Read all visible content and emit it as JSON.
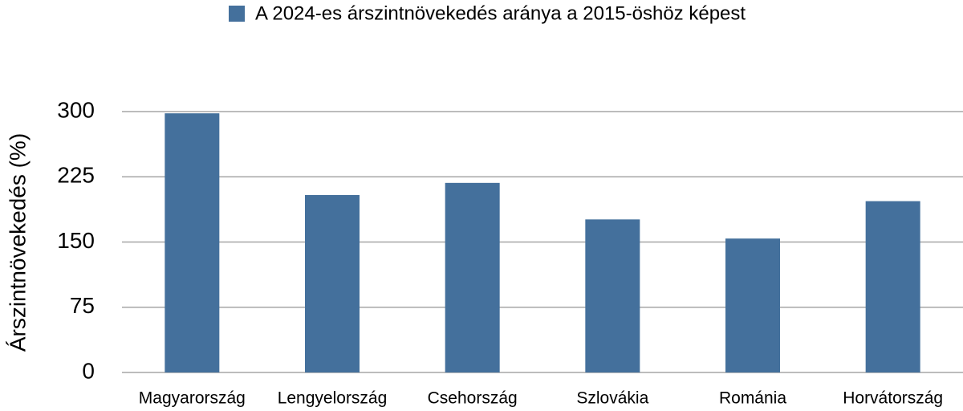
{
  "chart_data": {
    "type": "bar",
    "legend": "A 2024-es árszintnövekedés aránya a 2015-öshöz képest",
    "y_label": "Árszintnövekedés (%)",
    "categories": [
      "Magyarország",
      "Lengyelország",
      "Csehország",
      "Szlovákia",
      "Románia",
      "Horvátország"
    ],
    "values": [
      298,
      204,
      218,
      176,
      154,
      197
    ],
    "color": "#44709c",
    "ylim": [
      0,
      300
    ],
    "yticks": [
      0,
      75,
      150,
      225,
      300
    ],
    "grid": true
  }
}
